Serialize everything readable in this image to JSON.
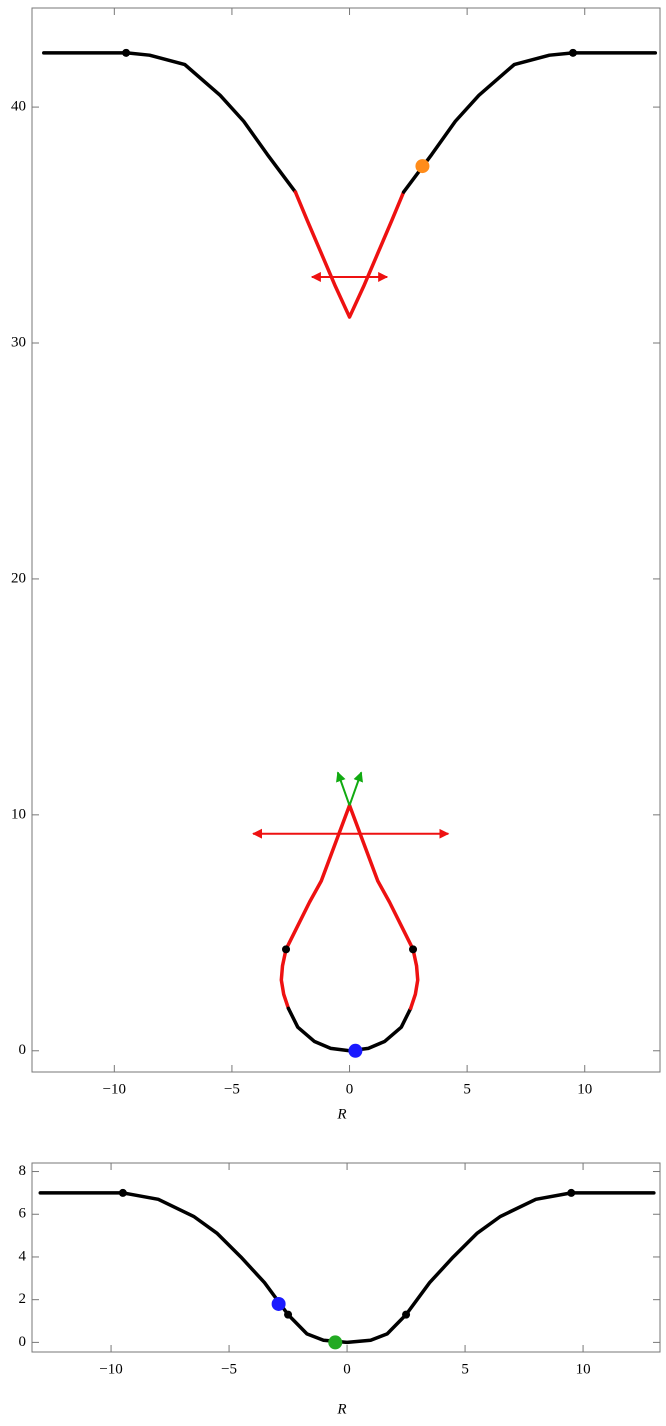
{
  "chart_data": [
    {
      "type": "line",
      "x_label": "R",
      "xlim": [
        -13.5,
        13.2
      ],
      "ylim": [
        -0.9,
        44.2
      ],
      "xticks": [
        {
          "value": -10,
          "label": "−10"
        },
        {
          "value": -5,
          "label": "−5"
        },
        0,
        5,
        10
      ],
      "yticks": [
        0,
        10,
        20,
        30,
        40
      ],
      "series": [
        {
          "color": "#000000",
          "x": [
            -13,
            -11,
            -9.5,
            -8.5,
            -7,
            -5.5,
            -4.5,
            -3.5,
            -2.3
          ],
          "values": [
            42.3,
            42.3,
            42.3,
            42.2,
            41.8,
            40.5,
            39.4,
            38.0,
            36.4
          ]
        },
        {
          "color": "#ee1111",
          "x": [
            -2.3,
            -1.8,
            -1.2,
            -0.6,
            0,
            0.6,
            1.2,
            1.8,
            2.3
          ],
          "values": [
            36.4,
            35.2,
            33.8,
            32.4,
            31.1,
            32.4,
            33.8,
            35.2,
            36.4
          ]
        },
        {
          "color": "#000000",
          "x": [
            2.3,
            3.5,
            4.5,
            5.5,
            7,
            8.5,
            9.5,
            11,
            13
          ],
          "values": [
            36.4,
            38.0,
            39.4,
            40.5,
            41.8,
            42.2,
            42.3,
            42.3,
            42.3
          ]
        },
        {
          "color": "#ee1111",
          "x": [
            0,
            -0.6,
            -1.2,
            -1.7,
            -2.3,
            -2.7,
            -2.85,
            -2.9,
            -2.8,
            -2.6
          ],
          "values": [
            10.4,
            8.8,
            7.2,
            6.3,
            5.1,
            4.3,
            3.6,
            3.0,
            2.4,
            1.8
          ]
        },
        {
          "color": "#000000",
          "x": [
            -2.6,
            -2.2,
            -1.5,
            -0.8,
            0,
            0.8,
            1.5,
            2.2,
            2.6
          ],
          "values": [
            1.8,
            1.0,
            0.4,
            0.1,
            0,
            0.1,
            0.4,
            1.0,
            1.8
          ]
        },
        {
          "color": "#ee1111",
          "x": [
            2.6,
            2.8,
            2.9,
            2.85,
            2.7,
            2.3,
            1.7,
            1.2,
            0.6,
            0
          ],
          "values": [
            1.8,
            2.4,
            3.0,
            3.6,
            4.3,
            5.1,
            6.3,
            7.2,
            8.8,
            10.4
          ]
        }
      ],
      "markers": [
        {
          "color": "#000000",
          "x": -9.5,
          "y": 42.3
        },
        {
          "color": "#000000",
          "x": 9.5,
          "y": 42.3
        },
        {
          "color": "#ff8c1a",
          "x": 3.1,
          "y": 37.5
        },
        {
          "color": "#000000",
          "x": -2.7,
          "y": 4.3
        },
        {
          "color": "#000000",
          "x": 2.7,
          "y": 4.3
        },
        {
          "color": "#1a1aff",
          "x": 0.25,
          "y": 0
        }
      ],
      "arrows": [
        {
          "color": "#ee1111",
          "x": [
            -1.6,
            1.6
          ],
          "y": [
            32.8,
            32.8
          ]
        },
        {
          "color": "#ee1111",
          "x": [
            -4.1,
            4.2
          ],
          "y": [
            9.2,
            9.2
          ]
        },
        {
          "color": "#11aa11",
          "x": [
            0,
            -0.5
          ],
          "y": [
            10.4,
            11.8
          ]
        },
        {
          "color": "#11aa11",
          "x": [
            0,
            0.5
          ],
          "y": [
            10.4,
            11.8
          ]
        }
      ]
    },
    {
      "type": "line",
      "x_label": "R",
      "xlim": [
        -13.35,
        13.26
      ],
      "ylim": [
        -0.45,
        8.4
      ],
      "xticks": [
        {
          "value": -10,
          "label": "−10"
        },
        {
          "value": -5,
          "label": "−5"
        },
        0,
        5,
        10
      ],
      "yticks": [
        0,
        2,
        4,
        6,
        8
      ],
      "series": [
        {
          "color": "#000000",
          "x": [
            -13,
            -11,
            -9.5,
            -8,
            -6.5,
            -5.5,
            -4.5,
            -3.5,
            -2.5,
            -1.7,
            -1,
            0,
            1,
            1.7,
            2.5,
            3.5,
            4.5,
            5.5,
            6.5,
            8,
            9.5,
            11,
            13
          ],
          "values": [
            7.0,
            7.0,
            7.0,
            6.7,
            5.9,
            5.1,
            4.0,
            2.8,
            1.3,
            0.4,
            0.1,
            0,
            0.1,
            0.4,
            1.3,
            2.8,
            4.0,
            5.1,
            5.9,
            6.7,
            7.0,
            7.0,
            7.0
          ]
        }
      ],
      "markers": [
        {
          "color": "#000000",
          "x": -9.5,
          "y": 7.0
        },
        {
          "color": "#000000",
          "x": 9.5,
          "y": 7.0
        },
        {
          "color": "#000000",
          "x": -2.5,
          "y": 1.3
        },
        {
          "color": "#000000",
          "x": 2.5,
          "y": 1.3
        },
        {
          "color": "#1a1aff",
          "x": -2.9,
          "y": 1.8
        },
        {
          "color": "#22aa22",
          "x": -0.5,
          "y": 0
        }
      ],
      "arrows": []
    }
  ]
}
